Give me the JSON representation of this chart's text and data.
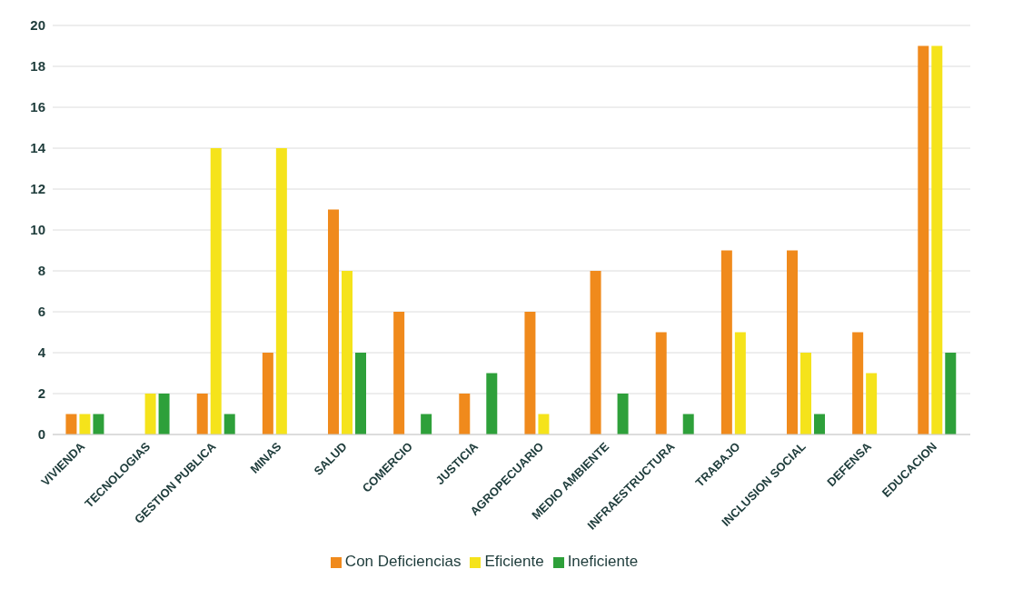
{
  "chart_data": {
    "type": "bar",
    "categories": [
      "VIVIENDA",
      "TECNOLOGIAS",
      "GESTION PUBLICA",
      "MINAS",
      "SALUD",
      "COMERCIO",
      "JUSTICIA",
      "AGROPECUARIO",
      "MEDIO AMBIENTE",
      "INFRAESTRUCTURA",
      "TRABAJO",
      "INCLUSION SOCIAL",
      "DEFENSA",
      "EDUCACION"
    ],
    "series": [
      {
        "name": "Con Deficiencias",
        "color": "#f08a1c",
        "values": [
          1,
          0,
          2,
          4,
          11,
          6,
          2,
          6,
          8,
          5,
          9,
          9,
          5,
          19
        ]
      },
      {
        "name": "Eficiente",
        "color": "#f5e31b",
        "values": [
          1,
          2,
          14,
          14,
          8,
          0,
          0,
          1,
          0,
          0,
          5,
          4,
          3,
          19
        ]
      },
      {
        "name": "Ineficiente",
        "color": "#2ea03a",
        "values": [
          1,
          2,
          1,
          0,
          4,
          1,
          3,
          0,
          2,
          1,
          0,
          1,
          0,
          4
        ]
      }
    ],
    "ylim": [
      0,
      20
    ],
    "yticks": [
      0,
      2,
      4,
      6,
      8,
      10,
      12,
      14,
      16,
      18,
      20
    ],
    "grid": "y",
    "legend": "bottom"
  }
}
